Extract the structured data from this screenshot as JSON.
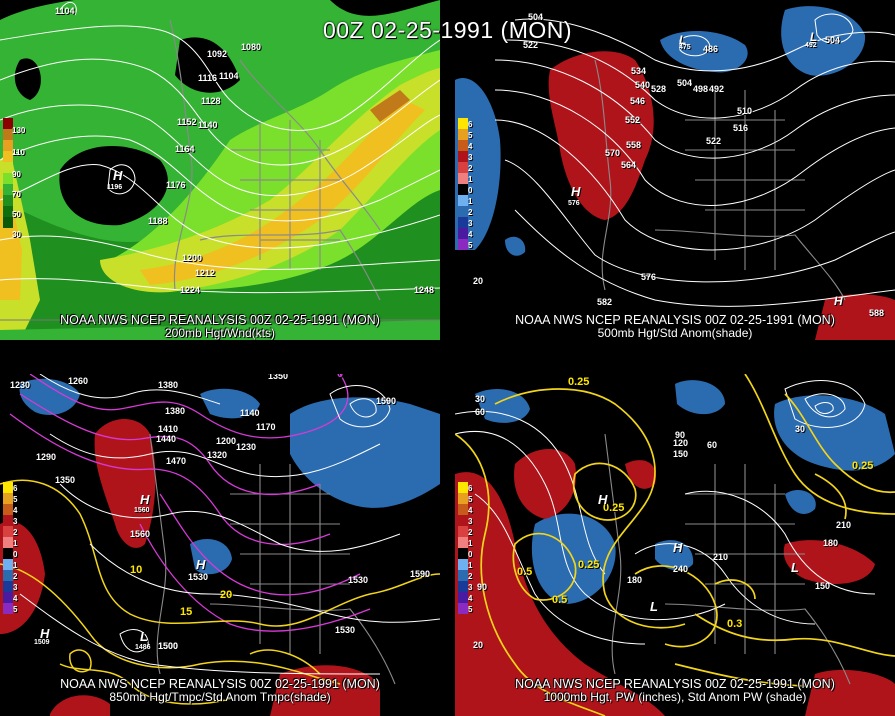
{
  "title": "00Z 02-25-1991 (MON)",
  "panels": [
    {
      "caption_line1": "NOAA NWS NCEP REANALYSIS 00Z 02-25-1991 (MON)",
      "caption_line2": "200mb Hgt/Wnd(kts)",
      "colorbar": [
        "130",
        "110",
        "90",
        "70",
        "50",
        "30"
      ],
      "labels": [
        "1104",
        "1092",
        "1080",
        "1116",
        "1104",
        "1128",
        "1152",
        "1140",
        "1164",
        "1176",
        "1188",
        "1200",
        "1212",
        "1224",
        "1248",
        "H",
        "1196"
      ]
    },
    {
      "caption_line1": "NOAA NWS NCEP REANALYSIS 00Z 02-25-1991 (MON)",
      "caption_line2": "500mb Hgt/Std Anom(shade)",
      "colorbar": [
        "6",
        "5",
        "4",
        "3",
        "2",
        "1",
        "0",
        "1",
        "2",
        "3",
        "4",
        "5"
      ],
      "labels": [
        "504",
        "522",
        "L",
        "475",
        "486",
        "504",
        "L",
        "492",
        "534",
        "546",
        "540",
        "528",
        "504",
        "498",
        "492",
        "552",
        "510",
        "516",
        "522",
        "570",
        "558",
        "564",
        "H",
        "576",
        "576",
        "582",
        "588",
        "H",
        "20"
      ]
    },
    {
      "caption_line1": "NOAA NWS NCEP REANALYSIS 00Z 02-25-1991 (MON)",
      "caption_line2": "850mb Hgt/Tmpc/Std Anom Tmpc(shade)",
      "colorbar": [
        "6",
        "5",
        "4",
        "3",
        "2",
        "1",
        "0",
        "1",
        "2",
        "3",
        "4",
        "5"
      ],
      "labels": [
        "1230",
        "1260",
        "1380",
        "1350",
        "1380",
        "1410",
        "1440",
        "1470",
        "1290",
        "1350",
        "1320",
        "1170",
        "1140",
        "1200",
        "1230",
        "1560",
        "1530",
        "1590",
        "1500",
        "1530",
        "1590",
        "H",
        "1560",
        "H",
        "1530",
        "L",
        "1486",
        "1500",
        "H",
        "1509",
        "10",
        "15",
        "20",
        "0"
      ]
    },
    {
      "caption_line1": "NOAA NWS NCEP REANALYSIS 00Z 02-25-1991 (MON)",
      "caption_line2": "1000mb Hgt, PW (inches), Std Anom PW (shade)",
      "colorbar": [
        "6",
        "5",
        "4",
        "3",
        "2",
        "1",
        "0",
        "1",
        "2",
        "3",
        "4",
        "5"
      ],
      "labels": [
        "0.25",
        "60",
        "30",
        "90",
        "120",
        "150",
        "60",
        "210",
        "180",
        "240",
        "180",
        "210",
        "150",
        "90",
        "0.25",
        "0.25",
        "0.5",
        "0.25",
        "0.5",
        "0.3",
        "H",
        "H",
        "L",
        "L",
        "20",
        "30"
      ]
    }
  ]
}
